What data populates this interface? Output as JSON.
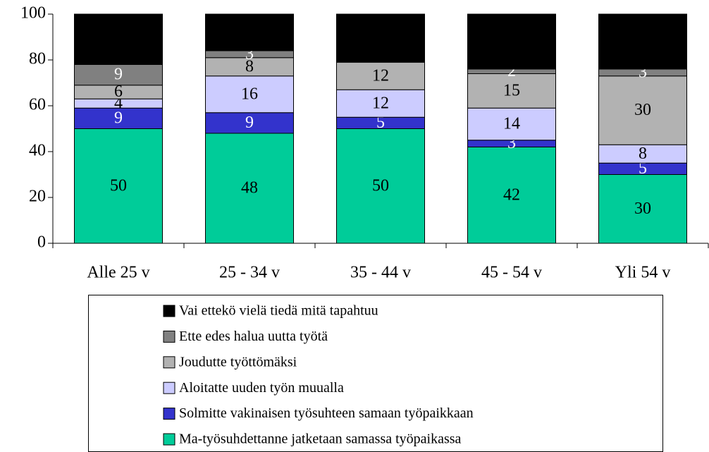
{
  "chart_data": {
    "type": "stacked_bar",
    "categories": [
      "Alle 25 v",
      "25 - 34 v",
      "35 - 44 v",
      "45 - 54 v",
      "Yli 54 v"
    ],
    "series": [
      {
        "name": "Ma-työsuhdettanne jatketaan samassa työpaikassa",
        "color": "#00cc99",
        "label_color": "#000000",
        "show_labels": true,
        "values": [
          50,
          48,
          50,
          42,
          30
        ]
      },
      {
        "name": "Solmitte vakinaisen työsuhteen samaan työpaikkaan",
        "color": "#3333cc",
        "label_color": "#ffffff",
        "show_labels": true,
        "values": [
          9,
          9,
          5,
          3,
          5
        ]
      },
      {
        "name": "Aloitatte uuden työn muualla",
        "color": "#ccccff",
        "label_color": "#000000",
        "show_labels": true,
        "values": [
          4,
          16,
          12,
          14,
          8
        ]
      },
      {
        "name": "Joudutte työttömäksi",
        "color": "#b2b2b2",
        "label_color": "#000000",
        "show_labels": true,
        "values": [
          6,
          8,
          12,
          15,
          30
        ]
      },
      {
        "name": "Ette edes halua uutta työtä",
        "color": "#808080",
        "label_color": "#ffffff",
        "show_labels": true,
        "values": [
          9,
          3,
          null,
          2,
          3
        ]
      },
      {
        "name": "Vai ettekö vielä tiedä mitä tapahtuu",
        "color": "#000000",
        "label_color": "#ffffff",
        "show_labels": false,
        "values": [
          22,
          16,
          21,
          24,
          24
        ]
      }
    ],
    "ylim": [
      0,
      100
    ],
    "yticks": [
      0,
      20,
      40,
      60,
      80,
      100
    ],
    "grid": false
  }
}
